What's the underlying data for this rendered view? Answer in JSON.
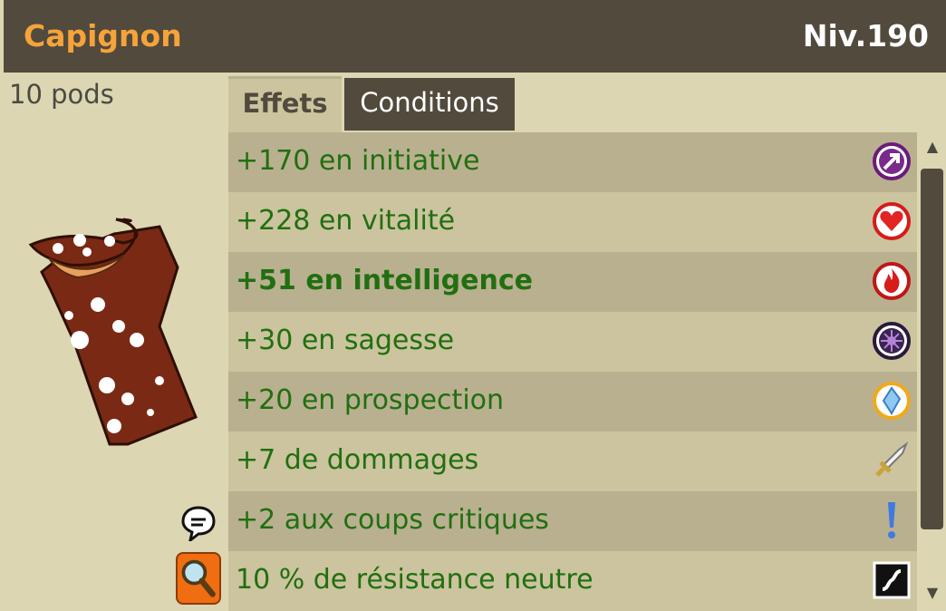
{
  "item": {
    "name": "Capignon",
    "level": "Niv.190",
    "weight": "10 pods"
  },
  "tabs": {
    "effects": "Effets",
    "conditions": "Conditions"
  },
  "effects": [
    {
      "text": "+170 en initiative",
      "icon": "initiative-icon",
      "bold": false
    },
    {
      "text": "+228 en vitalité",
      "icon": "vitality-heart-icon",
      "bold": false
    },
    {
      "text": "+51 en intelligence",
      "icon": "intelligence-fire-icon",
      "bold": true
    },
    {
      "text": "+30 en sagesse",
      "icon": "wisdom-icon",
      "bold": false
    },
    {
      "text": "+20 en prospection",
      "icon": "prospecting-crystal-icon",
      "bold": false
    },
    {
      "text": "+7 de dommages",
      "icon": "damage-sword-icon",
      "bold": false
    },
    {
      "text": "+2 aux coups critiques",
      "icon": "critical-exclamation-icon",
      "bold": false
    },
    {
      "text": "10 % de résistance neutre",
      "icon": "neutral-resistance-icon",
      "bold": false
    }
  ],
  "colors": {
    "header_bg": "#514a3d",
    "item_name": "#f6a33a",
    "effect_text": "#216f10",
    "panel_bg": "#dcd6b3"
  }
}
